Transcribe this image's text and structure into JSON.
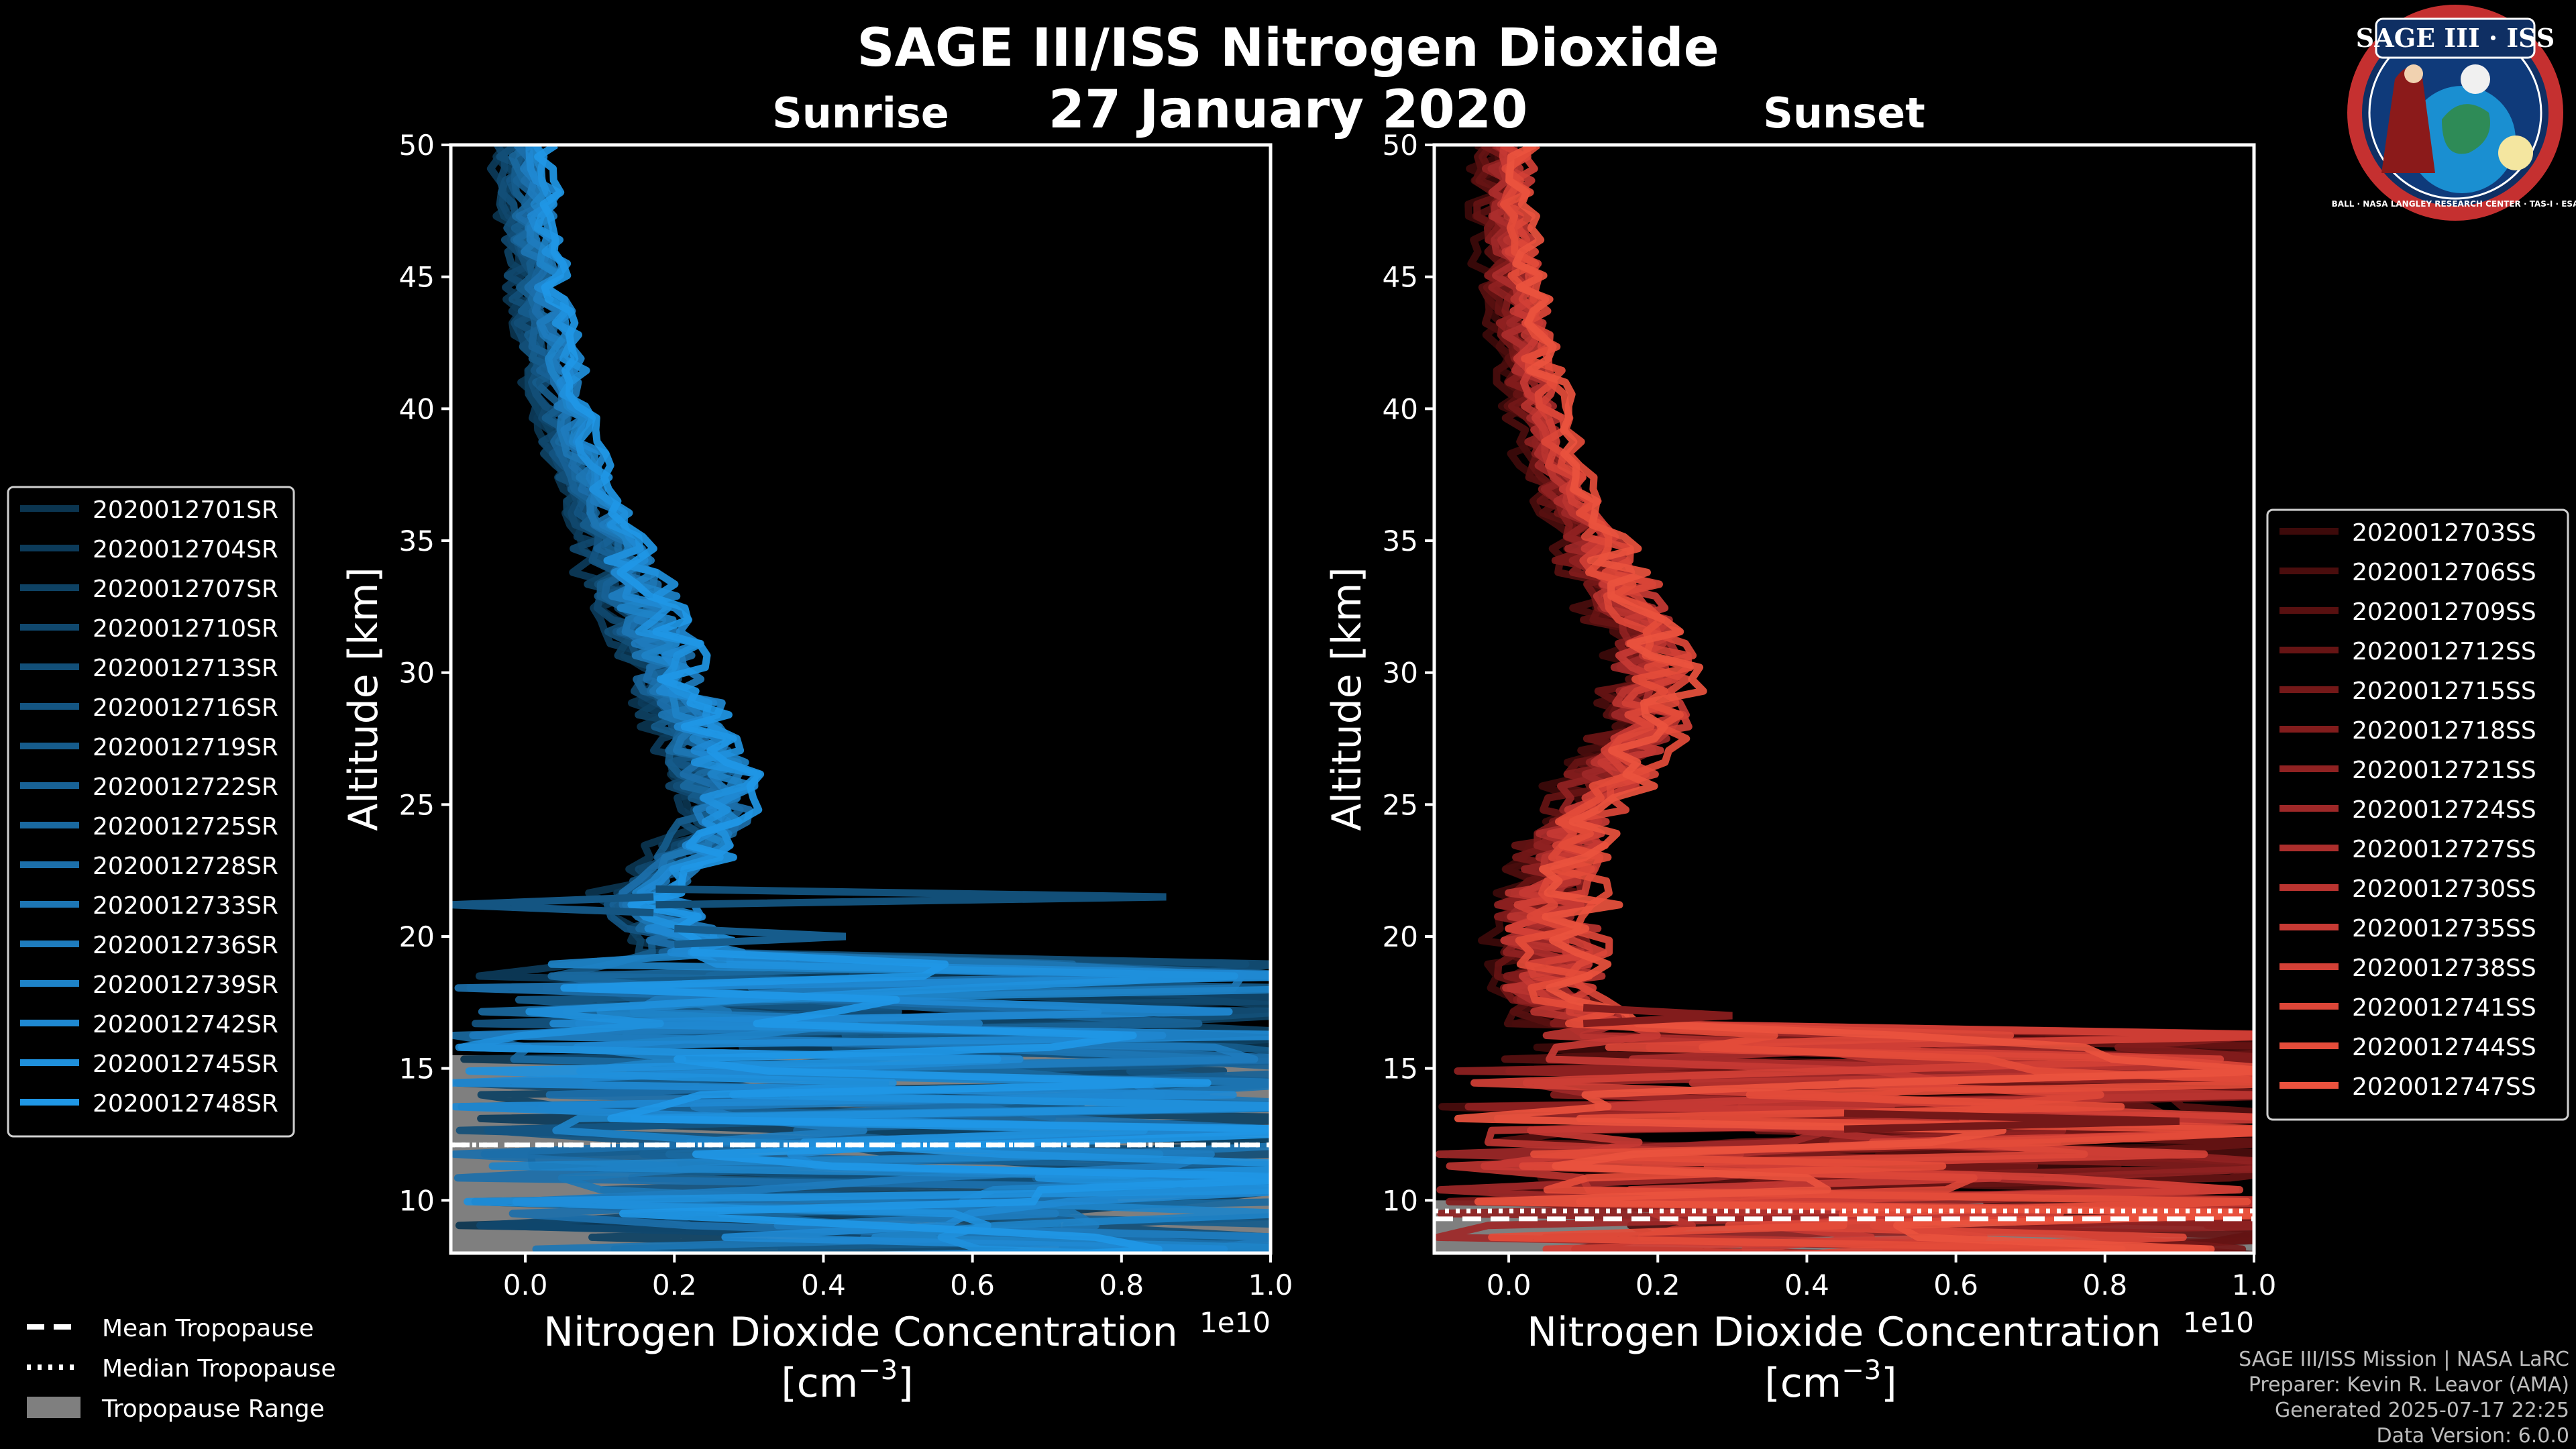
{
  "title": "SAGE III/ISS Nitrogen Dioxide",
  "date": "27 January 2020",
  "footer": [
    "SAGE III/ISS Mission | NASA LaRC",
    "Preparer: Kevin R. Leavor (AMA)",
    "Generated 2025-07-17 22:25",
    "Data Version: 6.0.0"
  ],
  "logo": {
    "top_text": "SAGE III · ISS",
    "ring_text": "BALL · NASA LANGLEY RESEARCH CENTER · TAS-I · ESA"
  },
  "colors": {
    "sunrise": "#1f9be0",
    "sunset": "#e8503c",
    "tropo_range": "#7f7f7f"
  },
  "common_legend": {
    "mean": "Mean Tropopause",
    "median": "Median Tropopause",
    "range": "Tropopause Range"
  },
  "chart_data": [
    {
      "type": "line",
      "panel": "sunrise",
      "title": "Sunrise",
      "xlabel": "Nitrogen Dioxide Concentration",
      "xunits": "[cm",
      "xunit_exp": "−3",
      "xunit_close": "]",
      "ylabel": "Altitude [km]",
      "xlim": [
        -0.1,
        1.0
      ],
      "ylim": [
        8,
        50
      ],
      "offset_text": "1e10",
      "xticks": [
        0.0,
        0.2,
        0.4,
        0.6,
        0.8,
        1.0
      ],
      "xtick_labels": [
        "0.0",
        "0.2",
        "0.4",
        "0.6",
        "0.8",
        "1.0"
      ],
      "yticks": [
        10,
        15,
        20,
        25,
        30,
        35,
        40,
        45,
        50
      ],
      "ytick_labels": [
        "10",
        "15",
        "20",
        "25",
        "30",
        "35",
        "40",
        "45",
        "50"
      ],
      "tropopause": {
        "mean": 12.1,
        "median": 12.1,
        "range": [
          8,
          15.5
        ]
      },
      "mean_profile": {
        "alt": [
          50,
          48,
          46,
          44,
          42,
          40,
          38,
          36,
          34,
          32,
          30,
          28,
          26,
          24.5,
          23,
          22,
          21,
          20,
          19,
          18,
          17,
          16,
          15,
          14,
          13,
          12,
          11,
          10,
          9
        ],
        "conc": [
          0.0,
          0.005,
          0.01,
          0.02,
          0.035,
          0.05,
          0.07,
          0.1,
          0.13,
          0.16,
          0.19,
          0.22,
          0.25,
          0.26,
          0.22,
          0.18,
          0.17,
          0.2,
          0.25,
          0.35,
          0.45,
          0.4,
          0.5,
          0.5,
          0.6,
          0.55,
          0.6,
          0.5,
          0.4
        ]
      },
      "series_names": [
        "2020012701SR",
        "2020012704SR",
        "2020012707SR",
        "2020012710SR",
        "2020012713SR",
        "2020012716SR",
        "2020012719SR",
        "2020012722SR",
        "2020012725SR",
        "2020012728SR",
        "2020012733SR",
        "2020012736SR",
        "2020012739SR",
        "2020012742SR",
        "2020012745SR",
        "2020012748SR"
      ],
      "series_colors": [
        "#0b3550",
        "#0c3b5a",
        "#0e4264",
        "#10486e",
        "#124f78",
        "#145582",
        "#165c8c",
        "#186296",
        "#1a69a0",
        "#1c6faa",
        "#1d76b4",
        "#1e7cbe",
        "#1e83c8",
        "#1f89d2",
        "#1f90dc",
        "#1f97e6"
      ],
      "spikes": [
        {
          "alt": 21.5,
          "conc": 0.86
        },
        {
          "alt": 21.2,
          "conc": -0.1
        },
        {
          "alt": 20.0,
          "conc": 0.43
        }
      ]
    },
    {
      "type": "line",
      "panel": "sunset",
      "title": "Sunset",
      "xlabel": "Nitrogen Dioxide Concentration",
      "xunits": "[cm",
      "xunit_exp": "−3",
      "xunit_close": "]",
      "ylabel": "Altitude [km]",
      "xlim": [
        -0.1,
        1.0
      ],
      "ylim": [
        8,
        50
      ],
      "offset_text": "1e10",
      "xticks": [
        0.0,
        0.2,
        0.4,
        0.6,
        0.8,
        1.0
      ],
      "xtick_labels": [
        "0.0",
        "0.2",
        "0.4",
        "0.6",
        "0.8",
        "1.0"
      ],
      "yticks": [
        10,
        15,
        20,
        25,
        30,
        35,
        40,
        45,
        50
      ],
      "ytick_labels": [
        "10",
        "15",
        "20",
        "25",
        "30",
        "35",
        "40",
        "45",
        "50"
      ],
      "tropopause": {
        "mean": 9.3,
        "median": 9.6,
        "range": [
          8,
          10
        ]
      },
      "mean_profile": {
        "alt": [
          50,
          48,
          46,
          44,
          42,
          40,
          38,
          36,
          34,
          32,
          30,
          28,
          26,
          24,
          22,
          20,
          18,
          17,
          16,
          15,
          14,
          13,
          12,
          11,
          10,
          9
        ],
        "conc": [
          0.0,
          -0.005,
          0.0,
          0.01,
          0.02,
          0.04,
          0.06,
          0.09,
          0.13,
          0.17,
          0.19,
          0.18,
          0.13,
          0.08,
          0.06,
          0.05,
          0.06,
          0.1,
          0.08,
          0.2,
          0.3,
          0.45,
          0.5,
          0.55,
          0.6,
          0.5
        ]
      },
      "series_names": [
        "2020012703SS",
        "2020012706SS",
        "2020012709SS",
        "2020012712SS",
        "2020012715SS",
        "2020012718SS",
        "2020012721SS",
        "2020012724SS",
        "2020012727SS",
        "2020012730SS",
        "2020012735SS",
        "2020012738SS",
        "2020012741SS",
        "2020012744SS",
        "2020012747SS"
      ],
      "series_colors": [
        "#3d0a0a",
        "#4a0d0d",
        "#581010",
        "#661414",
        "#741818",
        "#821c1c",
        "#902222",
        "#9e2828",
        "#ac2e2c",
        "#ba3430",
        "#c73a34",
        "#d24036",
        "#dc4638",
        "#e44c3a",
        "#ea523e"
      ],
      "spikes": [
        {
          "alt": 13.0,
          "conc": 0.9
        },
        {
          "alt": 17.0,
          "conc": 0.3
        }
      ]
    }
  ]
}
